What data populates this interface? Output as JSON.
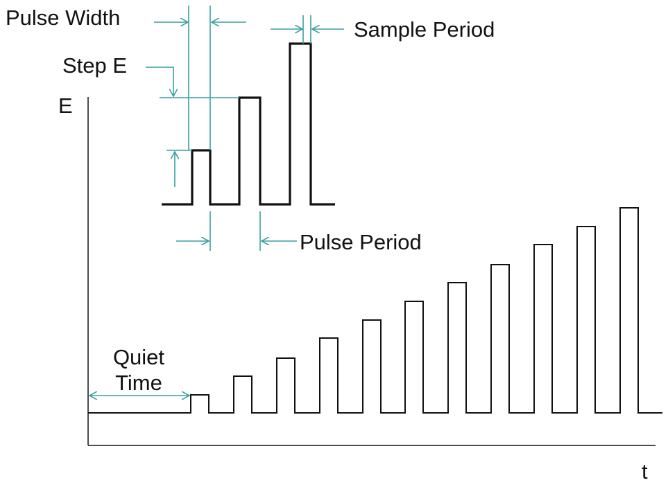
{
  "labels": {
    "pulse_width": "Pulse Width",
    "sample_period": "Sample Period",
    "step_e": "Step E",
    "e_axis": "E",
    "pulse_period": "Pulse Period",
    "quiet": "Quiet",
    "time": "Time",
    "t_axis": "t"
  }
}
